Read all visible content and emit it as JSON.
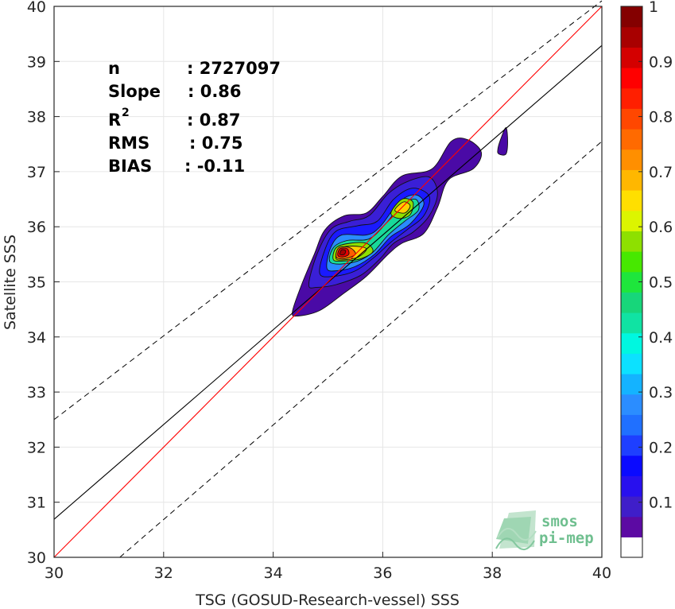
{
  "chart_data": {
    "type": "heatmap",
    "title": "",
    "xlabel": "TSG (GOSUD-Research-vessel) SSS",
    "ylabel": "Satellite SSS",
    "xlim": [
      30,
      40
    ],
    "ylim": [
      30,
      40
    ],
    "xticks": [
      "30",
      "32",
      "34",
      "36",
      "38",
      "40"
    ],
    "yticks": [
      "30",
      "31",
      "32",
      "33",
      "34",
      "35",
      "36",
      "37",
      "38",
      "39",
      "40"
    ],
    "grid": true,
    "stats": [
      {
        "label": "n",
        "value": ": 2727097"
      },
      {
        "label": "Slope",
        "value": ": 0.86"
      },
      {
        "label": "R",
        "sup": "2",
        "value": ": 0.87"
      },
      {
        "label": "RMS",
        "value": ": 0.75"
      },
      {
        "label": "BIAS",
        "value": ": -0.11"
      }
    ],
    "reference_lines": {
      "identity": {
        "color": "#ff0000",
        "slope": 1,
        "intercept": 0
      },
      "regression": {
        "color": "#000000",
        "points": [
          [
            30,
            30.69
          ],
          [
            40,
            39.29
          ]
        ]
      },
      "upper_bound": {
        "style": "dashed",
        "points": [
          [
            30,
            32.5
          ],
          [
            40,
            40.1
          ]
        ]
      },
      "lower_bound": {
        "style": "dashed",
        "points": [
          [
            31.2,
            30
          ],
          [
            40,
            37.55
          ]
        ]
      }
    },
    "density_contours": [
      {
        "level": 0.05,
        "color": "#4a0aa6",
        "points": [
          [
            34.35,
            34.45
          ],
          [
            34.5,
            34.9
          ],
          [
            34.75,
            35.5
          ],
          [
            34.95,
            35.95
          ],
          [
            35.3,
            36.2
          ],
          [
            35.7,
            36.25
          ],
          [
            36.0,
            36.55
          ],
          [
            36.35,
            36.92
          ],
          [
            36.9,
            37.05
          ],
          [
            37.25,
            37.55
          ],
          [
            37.55,
            37.58
          ],
          [
            37.8,
            37.35
          ],
          [
            37.65,
            37.05
          ],
          [
            37.2,
            36.85
          ],
          [
            37.0,
            36.35
          ],
          [
            36.75,
            35.88
          ],
          [
            36.35,
            35.7
          ],
          [
            36.1,
            35.5
          ],
          [
            35.7,
            35.1
          ],
          [
            35.3,
            34.8
          ],
          [
            34.85,
            34.48
          ],
          [
            34.45,
            34.38
          ]
        ]
      },
      {
        "level": 0.1,
        "color": "#3a1fd6",
        "points": [
          [
            34.65,
            34.95
          ],
          [
            34.8,
            35.5
          ],
          [
            35.05,
            35.95
          ],
          [
            35.4,
            36.1
          ],
          [
            35.75,
            36.2
          ],
          [
            36.1,
            36.6
          ],
          [
            36.45,
            36.82
          ],
          [
            36.85,
            36.9
          ],
          [
            37.0,
            36.6
          ],
          [
            36.85,
            36.2
          ],
          [
            36.55,
            35.9
          ],
          [
            36.2,
            35.7
          ],
          [
            35.95,
            35.42
          ],
          [
            35.6,
            35.12
          ],
          [
            35.15,
            34.95
          ],
          [
            34.8,
            34.9
          ]
        ]
      },
      {
        "level": 0.2,
        "color": "#1a1aff",
        "points": [
          [
            34.85,
            35.15
          ],
          [
            34.95,
            35.6
          ],
          [
            35.15,
            35.92
          ],
          [
            35.55,
            36.02
          ],
          [
            35.9,
            36.1
          ],
          [
            36.2,
            36.5
          ],
          [
            36.55,
            36.7
          ],
          [
            36.85,
            36.55
          ],
          [
            36.75,
            36.2
          ],
          [
            36.45,
            35.95
          ],
          [
            36.15,
            35.72
          ],
          [
            35.85,
            35.45
          ],
          [
            35.5,
            35.2
          ],
          [
            35.1,
            35.1
          ]
        ]
      },
      {
        "level": 0.3,
        "color": "#2a8bff",
        "points": [
          [
            34.98,
            35.25
          ],
          [
            35.05,
            35.62
          ],
          [
            35.25,
            35.85
          ],
          [
            35.7,
            35.85
          ],
          [
            35.95,
            36.0
          ],
          [
            36.3,
            36.45
          ],
          [
            36.6,
            36.58
          ],
          [
            36.75,
            36.4
          ],
          [
            36.5,
            36.05
          ],
          [
            36.15,
            35.82
          ],
          [
            35.85,
            35.5
          ],
          [
            35.5,
            35.28
          ],
          [
            35.15,
            35.2
          ]
        ]
      },
      {
        "level": 0.45,
        "color": "#18d89a",
        "points": [
          [
            35.05,
            35.35
          ],
          [
            35.1,
            35.62
          ],
          [
            35.35,
            35.75
          ],
          [
            35.75,
            35.78
          ],
          [
            36.05,
            36.05
          ],
          [
            36.35,
            36.4
          ],
          [
            36.6,
            36.5
          ],
          [
            36.65,
            36.3
          ],
          [
            36.4,
            36.1
          ],
          [
            36.1,
            35.85
          ],
          [
            35.8,
            35.52
          ],
          [
            35.45,
            35.35
          ]
        ]
      },
      {
        "level": 0.6,
        "color": "#8ee000",
        "points": [
          [
            35.1,
            35.4
          ],
          [
            35.15,
            35.62
          ],
          [
            35.4,
            35.7
          ],
          [
            35.7,
            35.7
          ],
          [
            35.82,
            35.55
          ],
          [
            35.6,
            35.42
          ],
          [
            35.3,
            35.38
          ]
        ]
      },
      {
        "level": 0.6,
        "color": "#8ee000",
        "points": [
          [
            36.15,
            36.25
          ],
          [
            36.35,
            36.5
          ],
          [
            36.55,
            36.45
          ],
          [
            36.5,
            36.22
          ],
          [
            36.3,
            36.15
          ]
        ]
      },
      {
        "level": 0.7,
        "color": "#ffd000",
        "points": [
          [
            35.15,
            35.42
          ],
          [
            35.2,
            35.6
          ],
          [
            35.45,
            35.65
          ],
          [
            35.7,
            35.6
          ],
          [
            35.55,
            35.45
          ],
          [
            35.3,
            35.4
          ]
        ]
      },
      {
        "level": 0.7,
        "color": "#ffd000",
        "points": [
          [
            36.22,
            36.3
          ],
          [
            36.38,
            36.45
          ],
          [
            36.5,
            36.38
          ],
          [
            36.4,
            36.25
          ]
        ]
      },
      {
        "level": 0.8,
        "color": "#ff5f00",
        "points": [
          [
            35.15,
            35.45
          ],
          [
            35.2,
            35.62
          ],
          [
            35.4,
            35.62
          ],
          [
            35.5,
            35.5
          ],
          [
            35.3,
            35.42
          ]
        ]
      },
      {
        "level": 0.9,
        "color": "#e60000",
        "points": [
          [
            35.18,
            35.48
          ],
          [
            35.22,
            35.6
          ],
          [
            35.35,
            35.6
          ],
          [
            35.38,
            35.5
          ],
          [
            35.27,
            35.45
          ]
        ]
      },
      {
        "level": 0.95,
        "color": "#a80000",
        "points": [
          [
            35.22,
            35.5
          ],
          [
            35.25,
            35.58
          ],
          [
            35.32,
            35.57
          ],
          [
            35.3,
            35.5
          ]
        ]
      },
      {
        "level": 0.05,
        "color": "#4a0aa6",
        "points": [
          [
            38.1,
            37.4
          ],
          [
            38.15,
            37.58
          ],
          [
            38.25,
            37.8
          ],
          [
            38.28,
            37.55
          ],
          [
            38.25,
            37.32
          ],
          [
            38.12,
            37.32
          ]
        ]
      }
    ],
    "colorbar": {
      "tick_labels": [
        "0.1",
        "0.2",
        "0.3",
        "0.4",
        "0.5",
        "0.6",
        "0.7",
        "0.8",
        "0.9",
        "1"
      ],
      "tick_values": [
        0.1,
        0.2,
        0.3,
        0.4,
        0.5,
        0.6,
        0.7,
        0.8,
        0.9,
        1.0
      ],
      "colors": [
        "#ffffff",
        "#5c0aa3",
        "#3f1ec9",
        "#2810ee",
        "#0a0aff",
        "#1e3fff",
        "#2070ff",
        "#2b8dff",
        "#14b3ff",
        "#0ce1ff",
        "#00f7e0",
        "#10e3a3",
        "#17d67a",
        "#1ee63c",
        "#47e800",
        "#8ee000",
        "#dcf500",
        "#ffdf00",
        "#ffb700",
        "#ff8f00",
        "#ff6a00",
        "#ff4700",
        "#ff1f00",
        "#ff0000",
        "#d40000",
        "#a80000",
        "#840000"
      ],
      "range": [
        0,
        1
      ]
    },
    "logo": {
      "line1": "smos",
      "line2": "pi-mep"
    }
  }
}
